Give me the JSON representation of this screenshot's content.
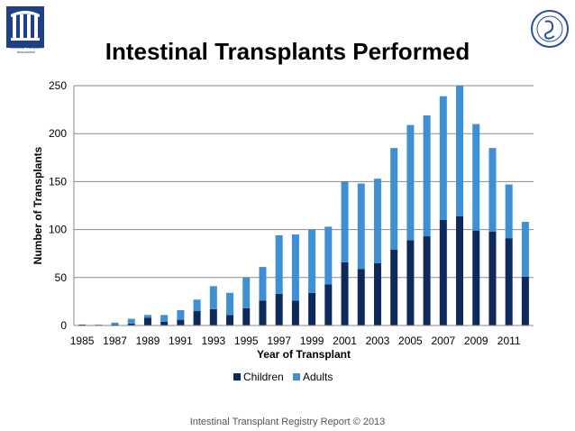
{
  "header": {
    "title": "Intestinal Transplants Performed",
    "logo_left_text": "Intestinal Transplant Association"
  },
  "footer": {
    "text": "Intestinal Transplant Registry Report © 2013"
  },
  "colors": {
    "children": "#0d2a5a",
    "adults": "#3f8fd5"
  },
  "chart_data": {
    "type": "bar",
    "stacked": true,
    "title": "Intestinal Transplants Performed",
    "xlabel": "Year of Transplant",
    "ylabel": "Number of Transplants",
    "ylim": [
      0,
      250
    ],
    "yticks": [
      0,
      50,
      100,
      150,
      200,
      250
    ],
    "grid": true,
    "legend_position": "bottom",
    "categories": [
      "1985",
      "1986",
      "1987",
      "1988",
      "1989",
      "1990",
      "1991",
      "1992",
      "1993",
      "1994",
      "1995",
      "1996",
      "1997",
      "1998",
      "1999",
      "2000",
      "2001",
      "2002",
      "2003",
      "2004",
      "2005",
      "2006",
      "2007",
      "2008",
      "2009",
      "2010",
      "2011",
      "2012"
    ],
    "x_tick_labels": [
      "1985",
      "1987",
      "1989",
      "1991",
      "1993",
      "1995",
      "1997",
      "1999",
      "2001",
      "2003",
      "2005",
      "2007",
      "2009",
      "2011"
    ],
    "series": [
      {
        "name": "Children",
        "values": [
          1,
          0,
          1,
          2,
          8,
          4,
          6,
          15,
          17,
          11,
          18,
          26,
          33,
          26,
          34,
          43,
          66,
          59,
          65,
          79,
          89,
          93,
          110,
          114,
          99,
          98,
          91,
          51
        ]
      },
      {
        "name": "Adults",
        "values": [
          0,
          1,
          2,
          5,
          3,
          7,
          10,
          12,
          24,
          23,
          32,
          35,
          61,
          69,
          66,
          60,
          84,
          89,
          88,
          106,
          120,
          126,
          129,
          136,
          111,
          87,
          56,
          57
        ]
      }
    ]
  }
}
